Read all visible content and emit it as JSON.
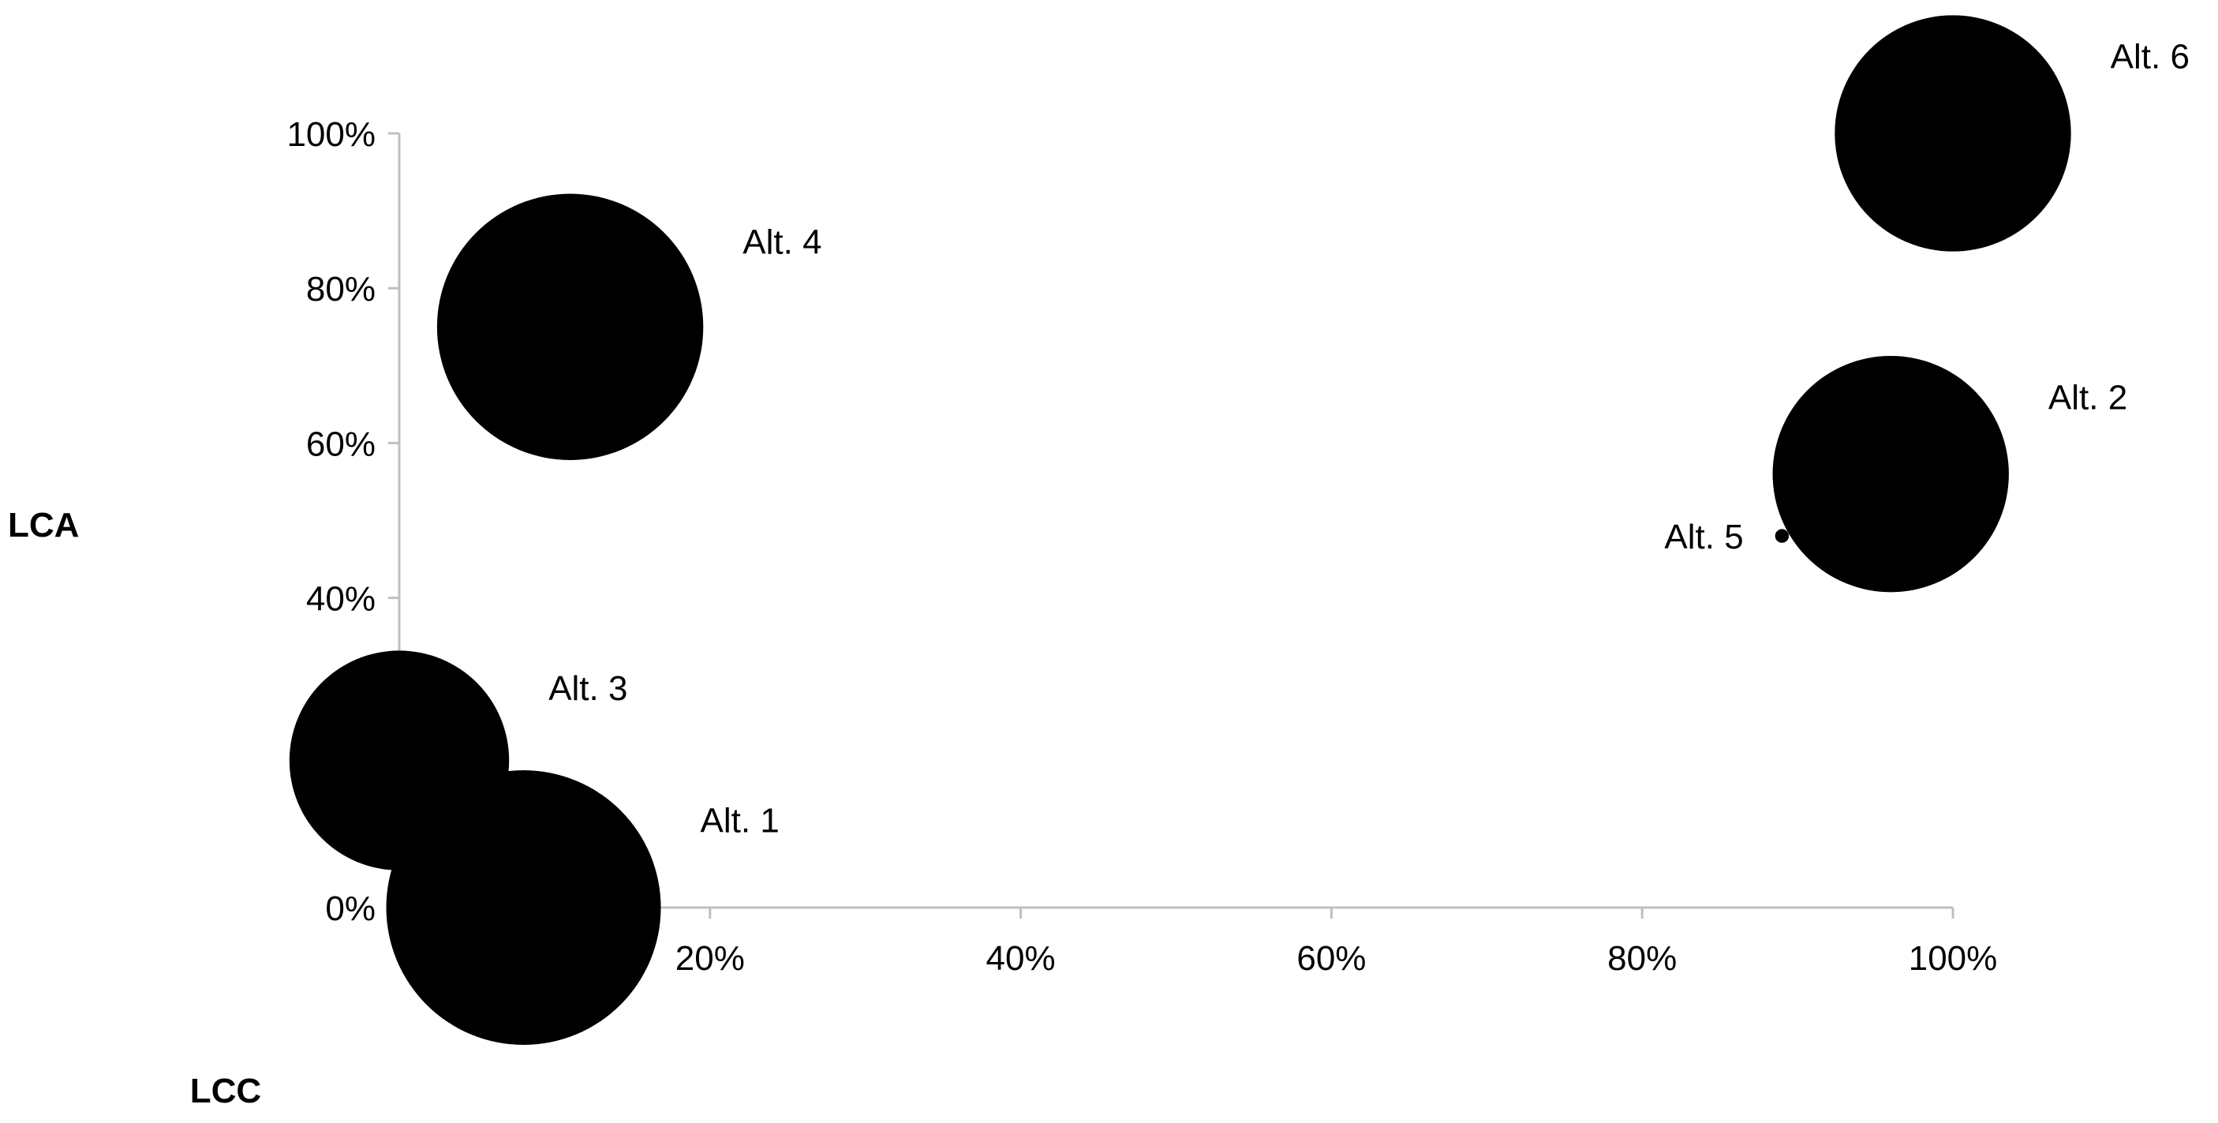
{
  "chart_data": {
    "type": "scatter",
    "subtype": "bubble",
    "title": "",
    "xlabel": "LCC",
    "ylabel": "LCA",
    "xlim": [
      0,
      100
    ],
    "ylim": [
      0,
      100
    ],
    "x_ticks": [
      "20%",
      "40%",
      "60%",
      "80%",
      "100%"
    ],
    "x_tick_values": [
      20,
      40,
      60,
      80,
      100
    ],
    "y_ticks": [
      "0%",
      "40%",
      "60%",
      "80%",
      "100%"
    ],
    "y_tick_values": [
      0,
      40,
      60,
      80,
      100
    ],
    "grid": false,
    "legend": "none",
    "colors": {
      "bubble": "#000000",
      "axis": "#bfbfbf"
    },
    "points": [
      {
        "label": "Alt. 1",
        "x": 8,
        "y": 0,
        "size": 100
      },
      {
        "label": "Alt. 2",
        "x": 96,
        "y": 56,
        "size": 74
      },
      {
        "label": "Alt. 3",
        "x": 0,
        "y": 19,
        "size": 64
      },
      {
        "label": "Alt. 4",
        "x": 11,
        "y": 75,
        "size": 94
      },
      {
        "label": "Alt. 5",
        "x": 89,
        "y": 48,
        "size": 0.25
      },
      {
        "label": "Alt. 6",
        "x": 100,
        "y": 100,
        "size": 74
      }
    ]
  }
}
